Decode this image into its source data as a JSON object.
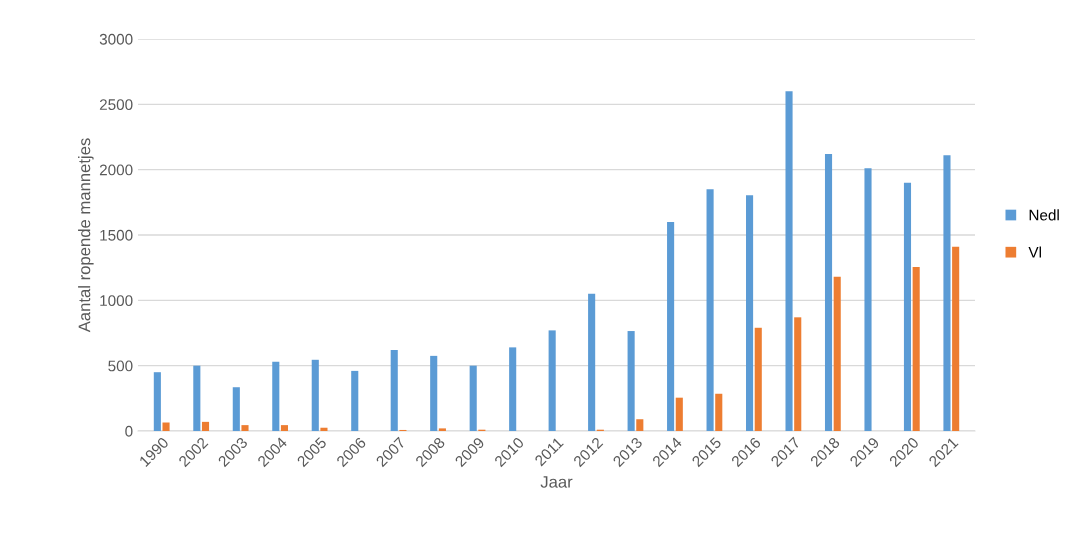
{
  "chart_data": {
    "type": "bar",
    "xlabel": "Jaar",
    "ylabel": "Aantal ropende mannetjes",
    "categories": [
      "1990",
      "2002",
      "2003",
      "2004",
      "2005",
      "2006",
      "2007",
      "2008",
      "2009",
      "2010",
      "2011",
      "2012",
      "2013",
      "2014",
      "2015",
      "2016",
      "2017",
      "2018",
      "2019",
      "2020",
      "2021"
    ],
    "series": [
      {
        "name": "Nedl",
        "color": "#5b9bd5",
        "values": [
          450,
          500,
          335,
          530,
          545,
          460,
          620,
          575,
          500,
          640,
          770,
          1050,
          765,
          1600,
          1850,
          1805,
          2600,
          2120,
          2010,
          1900,
          2110
        ]
      },
      {
        "name": "Vl",
        "color": "#ed7d31",
        "values": [
          65,
          70,
          45,
          45,
          25,
          0,
          8,
          20,
          10,
          0,
          0,
          10,
          90,
          255,
          285,
          790,
          870,
          1180,
          0,
          1255,
          1410
        ]
      }
    ],
    "ylim": [
      0,
      3000
    ],
    "yticks": [
      0,
      500,
      1000,
      1500,
      2000,
      2500,
      3000
    ],
    "grid": "y",
    "legend": "right"
  }
}
